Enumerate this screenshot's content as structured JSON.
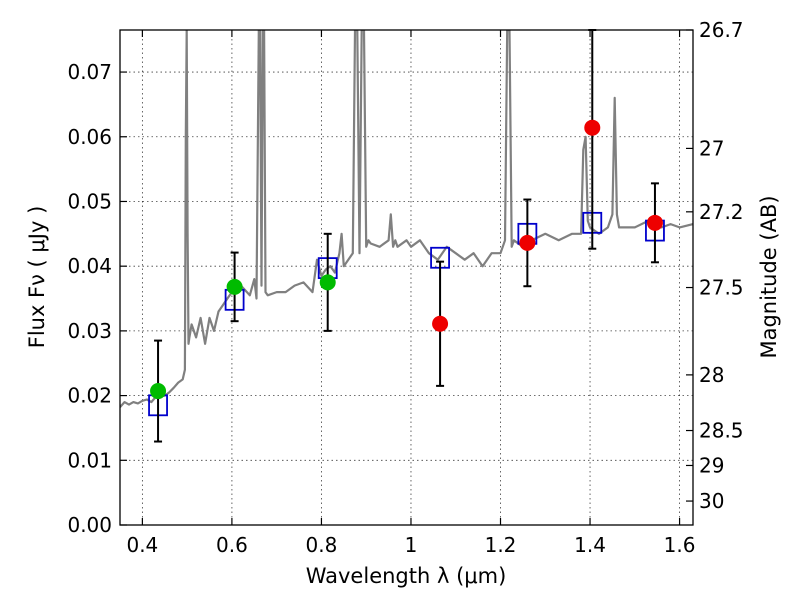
{
  "chart_data": {
    "type": "scatter",
    "title": "",
    "xlabel": "Wavelength  λ (μm)",
    "ylabel": "Flux  Fν  ( μJy )",
    "y2label": "Magnitude (AB)",
    "xlim": [
      0.35,
      1.63
    ],
    "ylim": [
      0.0,
      0.0765
    ],
    "grid": true,
    "x_ticks": [
      0.4,
      0.6,
      0.8,
      1.0,
      1.2,
      1.4,
      1.6
    ],
    "x_tick_labels": [
      "0.4",
      "0.6",
      "0.8",
      "1",
      "1.2",
      "1.4",
      "1.6"
    ],
    "y_ticks": [
      0.0,
      0.01,
      0.02,
      0.03,
      0.04,
      0.05,
      0.06,
      0.07
    ],
    "y_tick_labels": [
      "0.00",
      "0.01",
      "0.02",
      "0.03",
      "0.04",
      "0.05",
      "0.06",
      "0.07"
    ],
    "y2_ticks": [
      {
        "label": "26.7",
        "flux": 0.0765
      },
      {
        "label": "27",
        "flux": 0.0582
      },
      {
        "label": "27.2",
        "flux": 0.0484
      },
      {
        "label": "27.5",
        "flux": 0.0367
      },
      {
        "label": "28",
        "flux": 0.0232
      },
      {
        "label": "28.5",
        "flux": 0.0146
      },
      {
        "label": "29",
        "flux": 0.0092
      },
      {
        "label": "30",
        "flux": 0.0037
      }
    ],
    "colors": {
      "sed": "#808080",
      "model_box": "#0000cc",
      "optical": "#00bb00",
      "nir": "#ee0000",
      "errorbar": "#000000"
    },
    "sed_model": {
      "x": [
        0.35,
        0.36,
        0.37,
        0.38,
        0.39,
        0.4,
        0.41,
        0.42,
        0.43,
        0.44,
        0.45,
        0.46,
        0.47,
        0.48,
        0.49,
        0.495,
        0.497,
        0.499,
        0.501,
        0.503,
        0.505,
        0.51,
        0.52,
        0.53,
        0.54,
        0.55,
        0.56,
        0.57,
        0.58,
        0.59,
        0.6,
        0.62,
        0.64,
        0.65,
        0.655,
        0.66,
        0.663,
        0.666,
        0.669,
        0.672,
        0.675,
        0.68,
        0.7,
        0.72,
        0.74,
        0.76,
        0.78,
        0.79,
        0.8,
        0.81,
        0.82,
        0.83,
        0.84,
        0.845,
        0.85,
        0.86,
        0.87,
        0.875,
        0.88,
        0.885,
        0.89,
        0.895,
        0.9,
        0.905,
        0.91,
        0.93,
        0.95,
        0.955,
        0.96,
        0.965,
        0.97,
        0.99,
        1.0,
        1.02,
        1.04,
        1.06,
        1.08,
        1.1,
        1.12,
        1.14,
        1.16,
        1.18,
        1.2,
        1.21,
        1.215,
        1.22,
        1.225,
        1.23,
        1.25,
        1.27,
        1.3,
        1.33,
        1.36,
        1.38,
        1.385,
        1.39,
        1.395,
        1.4,
        1.42,
        1.44,
        1.45,
        1.455,
        1.46,
        1.465,
        1.47,
        1.5,
        1.53,
        1.56,
        1.58,
        1.6,
        1.63
      ],
      "y": [
        0.0182,
        0.019,
        0.0186,
        0.019,
        0.0188,
        0.0192,
        0.0194,
        0.019,
        0.0198,
        0.0199,
        0.02,
        0.0205,
        0.0212,
        0.022,
        0.0225,
        0.024,
        0.06,
        0.0765,
        0.045,
        0.028,
        0.029,
        0.031,
        0.029,
        0.032,
        0.028,
        0.032,
        0.03,
        0.033,
        0.034,
        0.035,
        0.036,
        0.037,
        0.0355,
        0.038,
        0.035,
        0.0765,
        0.0765,
        0.037,
        0.0765,
        0.0765,
        0.036,
        0.0355,
        0.036,
        0.036,
        0.037,
        0.0375,
        0.036,
        0.041,
        0.0385,
        0.0395,
        0.04,
        0.039,
        0.042,
        0.045,
        0.04,
        0.041,
        0.042,
        0.0765,
        0.0765,
        0.042,
        0.0765,
        0.0765,
        0.043,
        0.044,
        0.0435,
        0.043,
        0.044,
        0.048,
        0.043,
        0.044,
        0.043,
        0.044,
        0.043,
        0.044,
        0.042,
        0.041,
        0.043,
        0.042,
        0.041,
        0.042,
        0.04,
        0.042,
        0.042,
        0.044,
        0.0765,
        0.0765,
        0.043,
        0.044,
        0.043,
        0.044,
        0.045,
        0.044,
        0.045,
        0.045,
        0.058,
        0.06,
        0.047,
        0.046,
        0.045,
        0.046,
        0.048,
        0.066,
        0.048,
        0.046,
        0.046,
        0.046,
        0.047,
        0.046,
        0.0465,
        0.046,
        0.0465
      ]
    },
    "model_photometry": {
      "x": [
        0.435,
        0.606,
        0.814,
        1.065,
        1.26,
        1.405,
        1.545
      ],
      "y": [
        0.0185,
        0.0348,
        0.0397,
        0.0413,
        0.045,
        0.0467,
        0.0455
      ]
    },
    "observed_optical": {
      "x": [
        0.435,
        0.606,
        0.814
      ],
      "y": [
        0.0207,
        0.0368,
        0.0375
      ],
      "yerr": [
        0.0078,
        0.0053,
        0.0075
      ]
    },
    "observed_nir": {
      "x": [
        1.065,
        1.26,
        1.405,
        1.545
      ],
      "y": [
        0.0311,
        0.0436,
        0.0614,
        0.0467
      ],
      "yerr": [
        0.0096,
        0.0067,
        0.0187,
        0.0061
      ]
    }
  }
}
